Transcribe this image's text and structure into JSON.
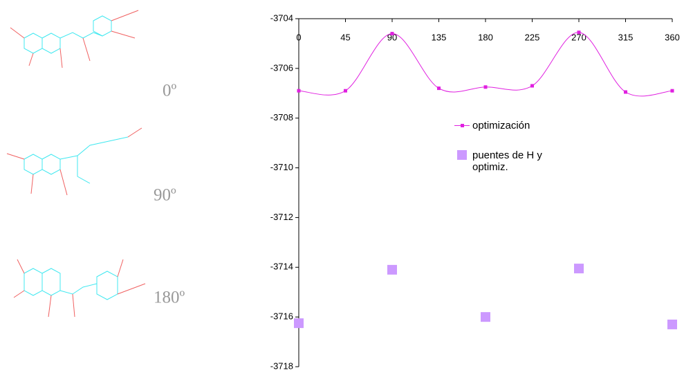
{
  "molecules": [
    {
      "label": "0º"
    },
    {
      "label": "90º"
    },
    {
      "label": "180º"
    }
  ],
  "chart_data": {
    "type": "line",
    "xlim": [
      0,
      360
    ],
    "xticks": [
      0,
      45,
      90,
      135,
      180,
      225,
      270,
      315,
      360
    ],
    "ylim": [
      -3718,
      -3704
    ],
    "yticks": [
      -3718,
      -3716,
      -3714,
      -3712,
      -3710,
      -3708,
      -3706,
      -3704
    ],
    "series": [
      {
        "name": "optimización",
        "color": "#e020e0",
        "smooth": true,
        "marker": "square-small",
        "x": [
          0,
          45,
          90,
          135,
          180,
          225,
          270,
          315,
          360
        ],
        "values": [
          -3706.9,
          -3706.9,
          -3704.6,
          -3706.8,
          -3706.75,
          -3706.7,
          -3704.55,
          -3706.95,
          -3706.9
        ]
      },
      {
        "name": "puentes de H y optimiz.",
        "color": "#cc99ff",
        "smooth": false,
        "marker": "square-large",
        "x": [
          0,
          90,
          180,
          270,
          360
        ],
        "values": [
          -3716.25,
          -3714.1,
          -3716.0,
          -3714.05,
          -3716.3
        ]
      }
    ]
  }
}
